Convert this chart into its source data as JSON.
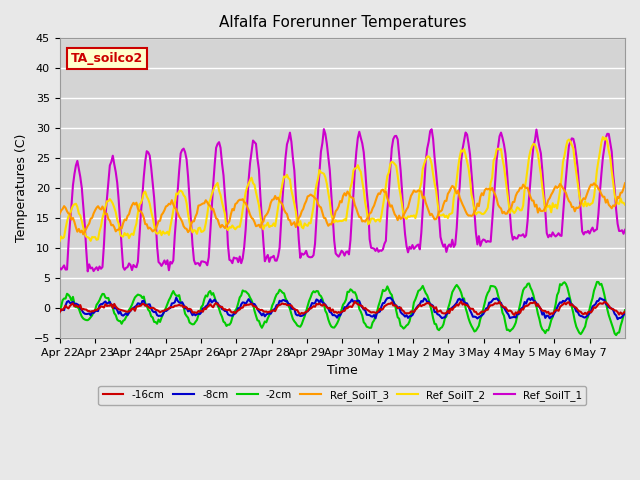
{
  "title": "Alfalfa Forerunner Temperatures",
  "xlabel": "Time",
  "ylabel": "Temperatures (C)",
  "ylim": [
    -5,
    45
  ],
  "n_days": 16,
  "background_color": "#e8e8e8",
  "plot_bg_color": "#d4d4d4",
  "grid_color": "#ffffff",
  "annotation_text": "TA_soilco2",
  "annotation_bg": "#ffffcc",
  "annotation_border": "#cc0000",
  "series": {
    "neg16cm": {
      "label": "-16cm",
      "color": "#cc0000",
      "lw": 1.5
    },
    "neg8cm": {
      "label": "-8cm",
      "color": "#0000cc",
      "lw": 1.5
    },
    "neg2cm": {
      "label": "-2cm",
      "color": "#00cc00",
      "lw": 1.5
    },
    "ref3": {
      "label": "Ref_SoilT_3",
      "color": "#ff9900",
      "lw": 1.5
    },
    "ref2": {
      "label": "Ref_SoilT_2",
      "color": "#ffdd00",
      "lw": 1.5
    },
    "ref1": {
      "label": "Ref_SoilT_1",
      "color": "#cc00cc",
      "lw": 1.5
    }
  },
  "tick_labels": [
    "Apr 22",
    "Apr 23",
    "Apr 24",
    "Apr 25",
    "Apr 26",
    "Apr 27",
    "Apr 28",
    "Apr 29",
    "Apr 30",
    "May 1",
    "May 2",
    "May 3",
    "May 4",
    "May 5",
    "May 6",
    "May 7"
  ],
  "yticks": [
    -5,
    0,
    5,
    10,
    15,
    20,
    25,
    30,
    35,
    40,
    45
  ]
}
